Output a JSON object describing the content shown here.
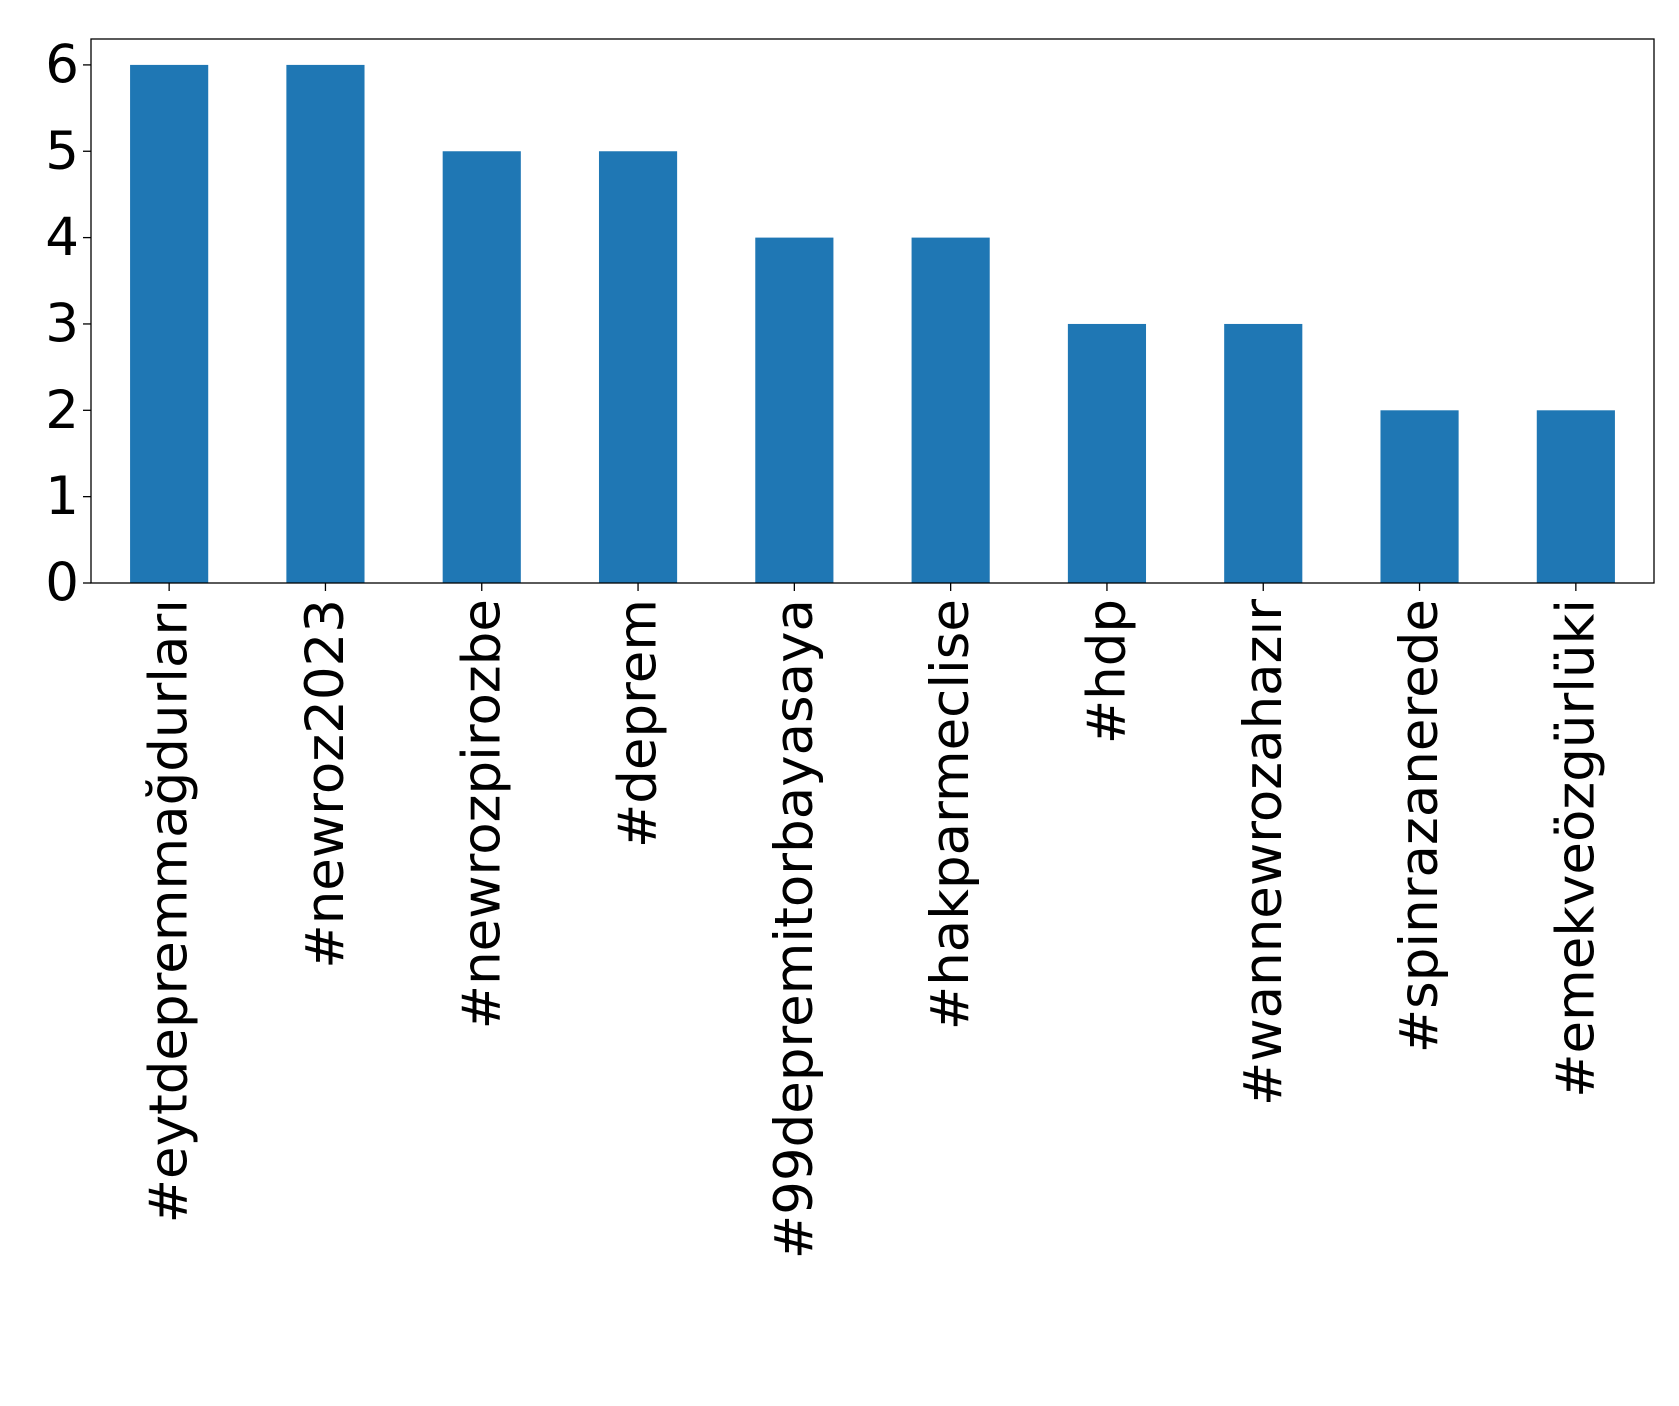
{
  "chart_data": {
    "type": "bar",
    "title": "",
    "xlabel": "",
    "ylabel": "",
    "categories": [
      "#eytdepremmağdurları",
      "#newroz2023",
      "#newrozpirozbe",
      "#deprem",
      "#99depremitorbayasaya",
      "#hakparmeclise",
      "#hdp",
      "#wannewrozahazır",
      "#spinrazanerede",
      "#emekveözgürlüki"
    ],
    "values": [
      6,
      6,
      5,
      5,
      4,
      4,
      3,
      3,
      2,
      2
    ],
    "ylim": [
      0,
      6.3
    ],
    "yticks": [
      "0",
      "1",
      "2",
      "3",
      "4",
      "5",
      "6"
    ],
    "bar_color": "#1f77b4",
    "grid": false,
    "legend": "none"
  }
}
